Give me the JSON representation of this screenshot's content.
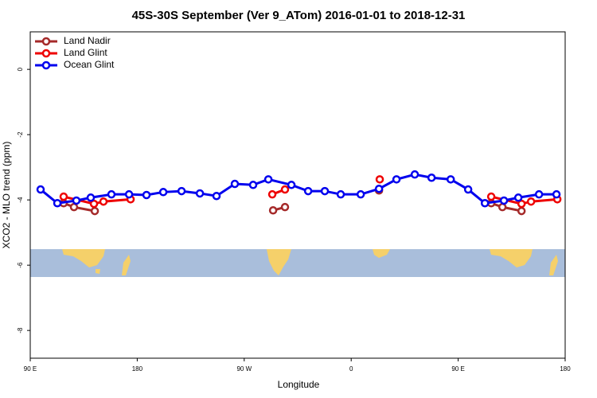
{
  "chart_data": {
    "type": "line",
    "title": "45S-30S September (Ver 9_ATom)   2016-01-01 to 2018-12-31",
    "x_label": "Longitude",
    "y_label": "XCO2 - MLO trend (ppm)",
    "xlim": [
      90,
      540
    ],
    "ylim": [
      -8.85,
      1.15
    ],
    "xticks": [
      {
        "value": 90,
        "label": "90 E"
      },
      {
        "value": 180,
        "label": "180"
      },
      {
        "value": 270,
        "label": "90 W"
      },
      {
        "value": 360,
        "label": "0"
      },
      {
        "value": 450,
        "label": "90 E"
      },
      {
        "value": 540,
        "label": "180"
      }
    ],
    "yticks": [
      0,
      -2,
      -4,
      -6,
      -8
    ],
    "legend": "top-left",
    "series": [
      {
        "name": "Land Nadir",
        "color": "#a52a2a",
        "x": [
          118.1,
          126.8,
          144.3,
          null,
          294.3,
          304.3,
          null,
          383.4,
          null,
          477.8,
          487.2,
          503.3
        ],
        "values": [
          -4.1,
          -4.22,
          -4.34,
          null,
          -4.32,
          -4.22,
          null,
          -3.71,
          null,
          -4.1,
          -4.22,
          -4.34
        ]
      },
      {
        "name": "Land Glint",
        "color": "#ee0000",
        "x": [
          118.1,
          143.6,
          151.6,
          174.4,
          null,
          293.6,
          304.3,
          null,
          384.0,
          null,
          477.8,
          503.3,
          511.3,
          533.4
        ],
        "values": [
          -3.9,
          -4.12,
          -4.05,
          -3.98,
          null,
          -3.83,
          -3.68,
          null,
          -3.37,
          null,
          -3.9,
          -4.12,
          -4.05,
          -3.98
        ]
      },
      {
        "name": "Ocean Glint",
        "color": "#0000ee",
        "x": [
          98.7,
          112.8,
          128.8,
          140.9,
          158.3,
          173.1,
          187.8,
          201.9,
          217.3,
          232.7,
          246.7,
          262.1,
          277.5,
          290.3,
          309.7,
          323.8,
          337.8,
          351.2,
          368.0,
          383.4,
          398.1,
          413.5,
          427.6,
          443.7,
          458.4,
          472.5,
          488.5,
          500.6,
          518.0,
          532.7
        ],
        "values": [
          -3.68,
          -4.1,
          -4.02,
          -3.93,
          -3.83,
          -3.83,
          -3.85,
          -3.76,
          -3.73,
          -3.8,
          -3.88,
          -3.51,
          -3.54,
          -3.37,
          -3.54,
          -3.73,
          -3.73,
          -3.83,
          -3.83,
          -3.66,
          -3.37,
          -3.22,
          -3.32,
          -3.37,
          -3.68,
          -4.1,
          -4.02,
          -3.93,
          -3.83,
          -3.83
        ]
      }
    ]
  }
}
